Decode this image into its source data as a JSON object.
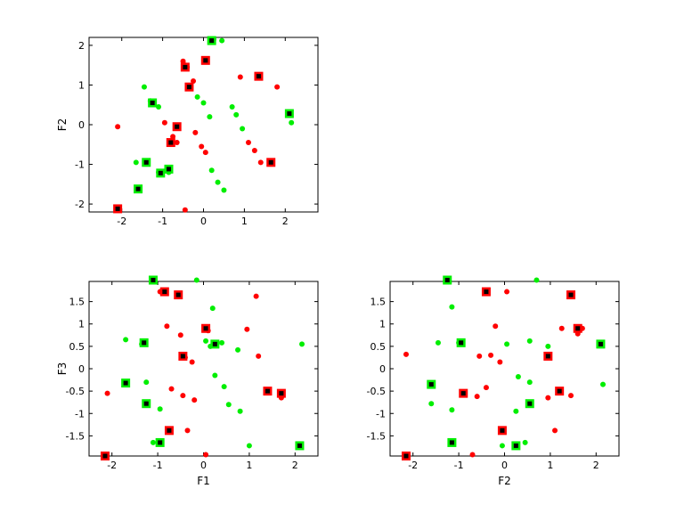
{
  "chart_data": [
    {
      "type": "scatter",
      "title": "",
      "xlabel": "",
      "ylabel": "F2",
      "xlim": [
        -2.8,
        2.8
      ],
      "ylim": [
        -2.2,
        2.2
      ],
      "xticks": [
        -2,
        -1,
        0,
        1,
        2
      ],
      "yticks": [
        -2,
        -1,
        0,
        1,
        2
      ],
      "xtick_labels": [
        "-2",
        "-1",
        "0",
        "1",
        "2"
      ],
      "ytick_labels": [
        "-2",
        "-1",
        "0",
        "1",
        "2"
      ],
      "colors": {
        "red": "#ff0000",
        "green": "#00ee00",
        "core": "#000000"
      },
      "series": [
        {
          "color": "red",
          "marker": "dot",
          "points": [
            [
              -2.1,
              -0.05
            ],
            [
              -0.5,
              1.6
            ],
            [
              -0.45,
              1.5
            ],
            [
              -0.4,
              1.45
            ],
            [
              -0.25,
              1.1
            ],
            [
              -0.95,
              0.05
            ],
            [
              -0.75,
              -0.3
            ],
            [
              -0.65,
              -0.45
            ],
            [
              -0.2,
              -0.2
            ],
            [
              -0.05,
              -0.55
            ],
            [
              0.05,
              -0.7
            ],
            [
              0.9,
              1.2
            ],
            [
              1.1,
              -0.45
            ],
            [
              1.25,
              -0.65
            ],
            [
              1.4,
              -0.95
            ],
            [
              1.8,
              0.95
            ],
            [
              -0.45,
              -2.15
            ]
          ]
        },
        {
          "color": "green",
          "marker": "dot",
          "points": [
            [
              0.25,
              2.15
            ],
            [
              0.45,
              2.12
            ],
            [
              -1.45,
              0.95
            ],
            [
              -1.3,
              0.6
            ],
            [
              -1.1,
              0.45
            ],
            [
              -0.15,
              0.7
            ],
            [
              0.0,
              0.55
            ],
            [
              0.15,
              0.2
            ],
            [
              0.7,
              0.45
            ],
            [
              0.8,
              0.25
            ],
            [
              0.95,
              -0.1
            ],
            [
              2.15,
              0.05
            ],
            [
              -1.65,
              -0.95
            ],
            [
              -1.1,
              -1.2
            ],
            [
              -0.85,
              -1.2
            ],
            [
              0.2,
              -1.15
            ],
            [
              0.35,
              -1.45
            ],
            [
              0.5,
              -1.65
            ]
          ]
        },
        {
          "color": "red",
          "marker": "square",
          "points": [
            [
              -0.45,
              1.45
            ],
            [
              0.05,
              1.62
            ],
            [
              -0.35,
              0.95
            ],
            [
              1.35,
              1.22
            ],
            [
              -0.65,
              -0.05
            ],
            [
              -0.8,
              -0.45
            ],
            [
              1.65,
              -0.95
            ],
            [
              -2.1,
              -2.12
            ]
          ]
        },
        {
          "color": "green",
          "marker": "square",
          "points": [
            [
              0.2,
              2.12
            ],
            [
              -1.25,
              0.55
            ],
            [
              2.1,
              0.28
            ],
            [
              -1.4,
              -0.95
            ],
            [
              -1.05,
              -1.22
            ],
            [
              -0.85,
              -1.12
            ],
            [
              -1.6,
              -1.62
            ]
          ]
        }
      ]
    },
    {
      "type": "scatter",
      "title": "",
      "xlabel": "F1",
      "ylabel": "F3",
      "xlim": [
        -2.5,
        2.5
      ],
      "ylim": [
        -1.95,
        1.95
      ],
      "xticks": [
        -2,
        -1,
        0,
        1,
        2
      ],
      "yticks": [
        -1.5,
        -1,
        -0.5,
        0,
        0.5,
        1,
        1.5
      ],
      "xtick_labels": [
        "-2",
        "-1",
        "0",
        "1",
        "2"
      ],
      "ytick_labels": [
        "-1.5",
        "-1",
        "-0.5",
        "0",
        "0.5",
        "1",
        "1.5"
      ],
      "colors": {
        "red": "#ff0000",
        "green": "#00ee00",
        "core": "#000000"
      },
      "series": [
        {
          "color": "red",
          "marker": "dot",
          "points": [
            [
              -0.95,
              1.72
            ],
            [
              -0.55,
              1.62
            ],
            [
              1.15,
              1.62
            ],
            [
              -0.8,
              0.95
            ],
            [
              -0.5,
              0.75
            ],
            [
              0.1,
              0.85
            ],
            [
              0.95,
              0.88
            ],
            [
              -0.45,
              0.3
            ],
            [
              -0.4,
              0.25
            ],
            [
              -0.25,
              0.15
            ],
            [
              1.2,
              0.28
            ],
            [
              -2.1,
              -0.55
            ],
            [
              -0.7,
              -0.45
            ],
            [
              -0.45,
              -0.6
            ],
            [
              -0.2,
              -0.7
            ],
            [
              1.7,
              -0.65
            ],
            [
              1.7,
              -0.55
            ],
            [
              -0.35,
              -1.38
            ],
            [
              0.05,
              -1.92
            ]
          ]
        },
        {
          "color": "green",
          "marker": "dot",
          "points": [
            [
              -0.15,
              1.98
            ],
            [
              -1.7,
              0.65
            ],
            [
              -1.35,
              0.55
            ],
            [
              -1.25,
              -0.3
            ],
            [
              -0.95,
              -0.9
            ],
            [
              -1.1,
              -1.65
            ],
            [
              0.2,
              1.35
            ],
            [
              0.15,
              0.5
            ],
            [
              0.05,
              0.62
            ],
            [
              0.4,
              0.58
            ],
            [
              0.75,
              0.42
            ],
            [
              0.25,
              -0.15
            ],
            [
              0.45,
              -0.4
            ],
            [
              0.55,
              -0.8
            ],
            [
              0.8,
              -0.95
            ],
            [
              1.0,
              -1.72
            ],
            [
              2.15,
              0.55
            ]
          ]
        },
        {
          "color": "red",
          "marker": "square",
          "points": [
            [
              -0.85,
              1.72
            ],
            [
              -0.55,
              1.65
            ],
            [
              0.05,
              0.9
            ],
            [
              -0.45,
              0.28
            ],
            [
              1.4,
              -0.5
            ],
            [
              1.7,
              -0.55
            ],
            [
              -0.75,
              -1.38
            ],
            [
              -2.15,
              -1.95
            ]
          ]
        },
        {
          "color": "green",
          "marker": "square",
          "points": [
            [
              -1.1,
              1.98
            ],
            [
              -1.3,
              0.58
            ],
            [
              0.25,
              0.55
            ],
            [
              -1.7,
              -0.32
            ],
            [
              -1.25,
              -0.78
            ],
            [
              -0.95,
              -1.65
            ],
            [
              2.1,
              -1.72
            ]
          ]
        }
      ]
    },
    {
      "type": "scatter",
      "title": "",
      "xlabel": "F2",
      "ylabel": "",
      "xlim": [
        -2.5,
        2.5
      ],
      "ylim": [
        -1.95,
        1.95
      ],
      "xticks": [
        -2,
        -1,
        0,
        1,
        2
      ],
      "yticks": [
        -1.5,
        -1,
        -0.5,
        0,
        0.5,
        1,
        1.5
      ],
      "xtick_labels": [
        "-2",
        "-1",
        "0",
        "1",
        "2"
      ],
      "ytick_labels": [
        "-1.5",
        "-1",
        "-0.5",
        "0",
        "0.5",
        "1",
        "1.5"
      ],
      "colors": {
        "red": "#ff0000",
        "green": "#00ee00",
        "core": "#000000"
      },
      "series": [
        {
          "color": "red",
          "marker": "dot",
          "points": [
            [
              -0.4,
              1.7
            ],
            [
              0.05,
              1.72
            ],
            [
              -0.2,
              0.95
            ],
            [
              -0.55,
              0.28
            ],
            [
              -0.3,
              0.3
            ],
            [
              -0.4,
              -0.42
            ],
            [
              -0.6,
              -0.62
            ],
            [
              -0.1,
              0.15
            ],
            [
              -2.15,
              0.32
            ],
            [
              -0.7,
              -1.92
            ],
            [
              -0.05,
              -1.35
            ],
            [
              1.25,
              0.9
            ],
            [
              1.6,
              0.78
            ],
            [
              1.7,
              0.9
            ],
            [
              0.95,
              -0.65
            ],
            [
              1.45,
              -0.6
            ],
            [
              1.1,
              -1.38
            ]
          ]
        },
        {
          "color": "green",
          "marker": "dot",
          "points": [
            [
              0.7,
              1.98
            ],
            [
              -1.15,
              1.38
            ],
            [
              -1.45,
              0.58
            ],
            [
              -1.0,
              0.58
            ],
            [
              0.05,
              0.55
            ],
            [
              0.55,
              0.62
            ],
            [
              0.95,
              0.5
            ],
            [
              0.3,
              -0.18
            ],
            [
              0.55,
              -0.3
            ],
            [
              0.25,
              -0.95
            ],
            [
              -1.6,
              -0.78
            ],
            [
              -1.15,
              -0.92
            ],
            [
              -0.05,
              -1.72
            ],
            [
              0.45,
              -1.65
            ],
            [
              2.15,
              -0.35
            ]
          ]
        },
        {
          "color": "red",
          "marker": "square",
          "points": [
            [
              -0.4,
              1.72
            ],
            [
              1.45,
              1.65
            ],
            [
              1.6,
              0.9
            ],
            [
              0.95,
              0.28
            ],
            [
              -0.9,
              -0.55
            ],
            [
              1.2,
              -0.5
            ],
            [
              -0.05,
              -1.38
            ],
            [
              -2.15,
              -1.95
            ]
          ]
        },
        {
          "color": "green",
          "marker": "square",
          "points": [
            [
              -1.25,
              1.98
            ],
            [
              2.1,
              0.55
            ],
            [
              -0.95,
              0.58
            ],
            [
              -1.6,
              -0.35
            ],
            [
              0.55,
              -0.78
            ],
            [
              -1.15,
              -1.65
            ],
            [
              0.25,
              -1.72
            ]
          ]
        }
      ]
    }
  ]
}
